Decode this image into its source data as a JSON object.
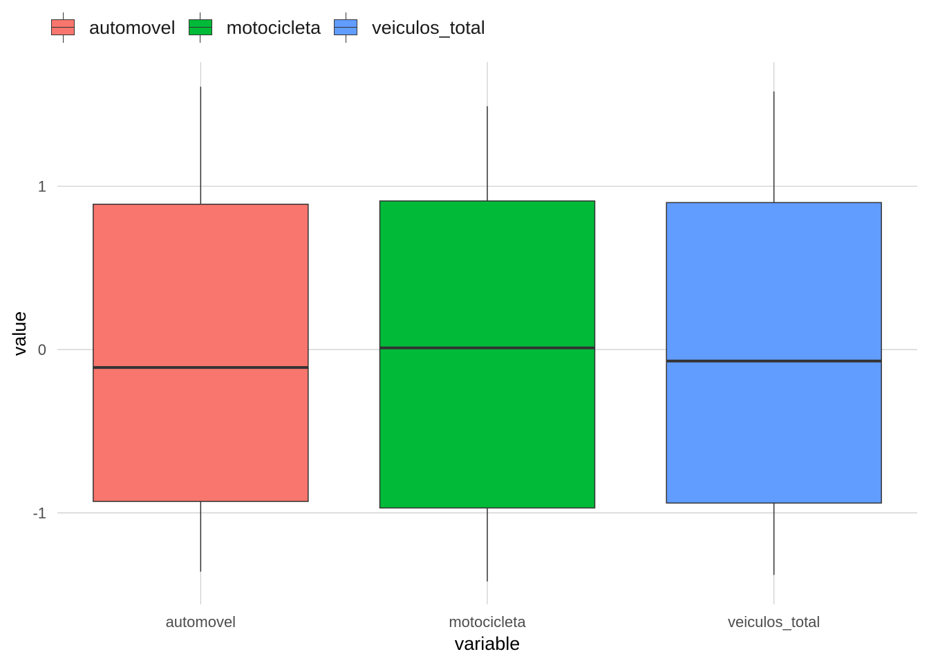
{
  "chart_data": {
    "type": "boxplot",
    "title": "",
    "xlabel": "variable",
    "ylabel": "value",
    "ylim": [
      -1.56,
      1.76
    ],
    "yticks": [
      -1,
      0,
      1
    ],
    "yticklabels": [
      "-1",
      "0",
      "1"
    ],
    "grid": true,
    "legend": "top-left",
    "categories": [
      "automovel",
      "motocicleta",
      "veiculos_total"
    ],
    "series": [
      {
        "name": "automovel",
        "color": "#F8766D",
        "whisker_low": -1.36,
        "q1": -0.93,
        "median": -0.11,
        "q3": 0.89,
        "whisker_high": 1.61
      },
      {
        "name": "motocicleta",
        "color": "#00BA38",
        "whisker_low": -1.42,
        "q1": -0.97,
        "median": 0.01,
        "q3": 0.91,
        "whisker_high": 1.49
      },
      {
        "name": "veiculos_total",
        "color": "#619CFF",
        "whisker_low": -1.38,
        "q1": -0.94,
        "median": -0.07,
        "q3": 0.9,
        "whisker_high": 1.58
      }
    ]
  }
}
